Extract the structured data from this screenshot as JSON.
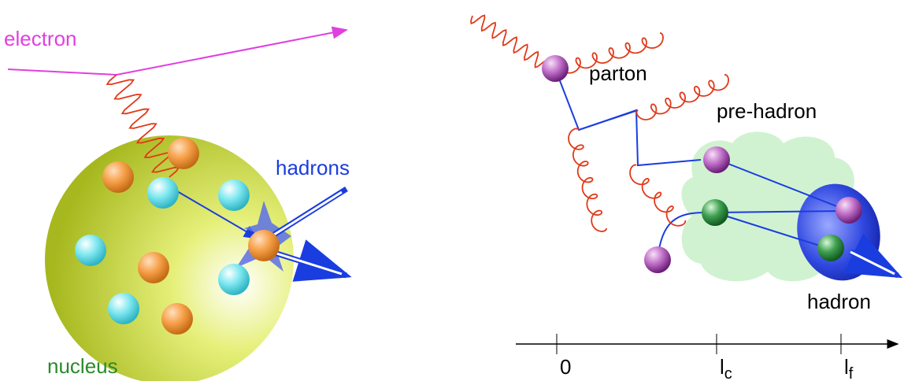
{
  "left": {
    "electron": "electron",
    "hadrons": "hadrons",
    "nucleus": "nucleus"
  },
  "right": {
    "parton": "parton",
    "pre_hadron": "pre-hadron",
    "hadron": "hadron",
    "axis": [
      {
        "label": "0"
      },
      {
        "label": "l",
        "sub": "c"
      },
      {
        "label": "l",
        "sub": "f"
      }
    ]
  }
}
